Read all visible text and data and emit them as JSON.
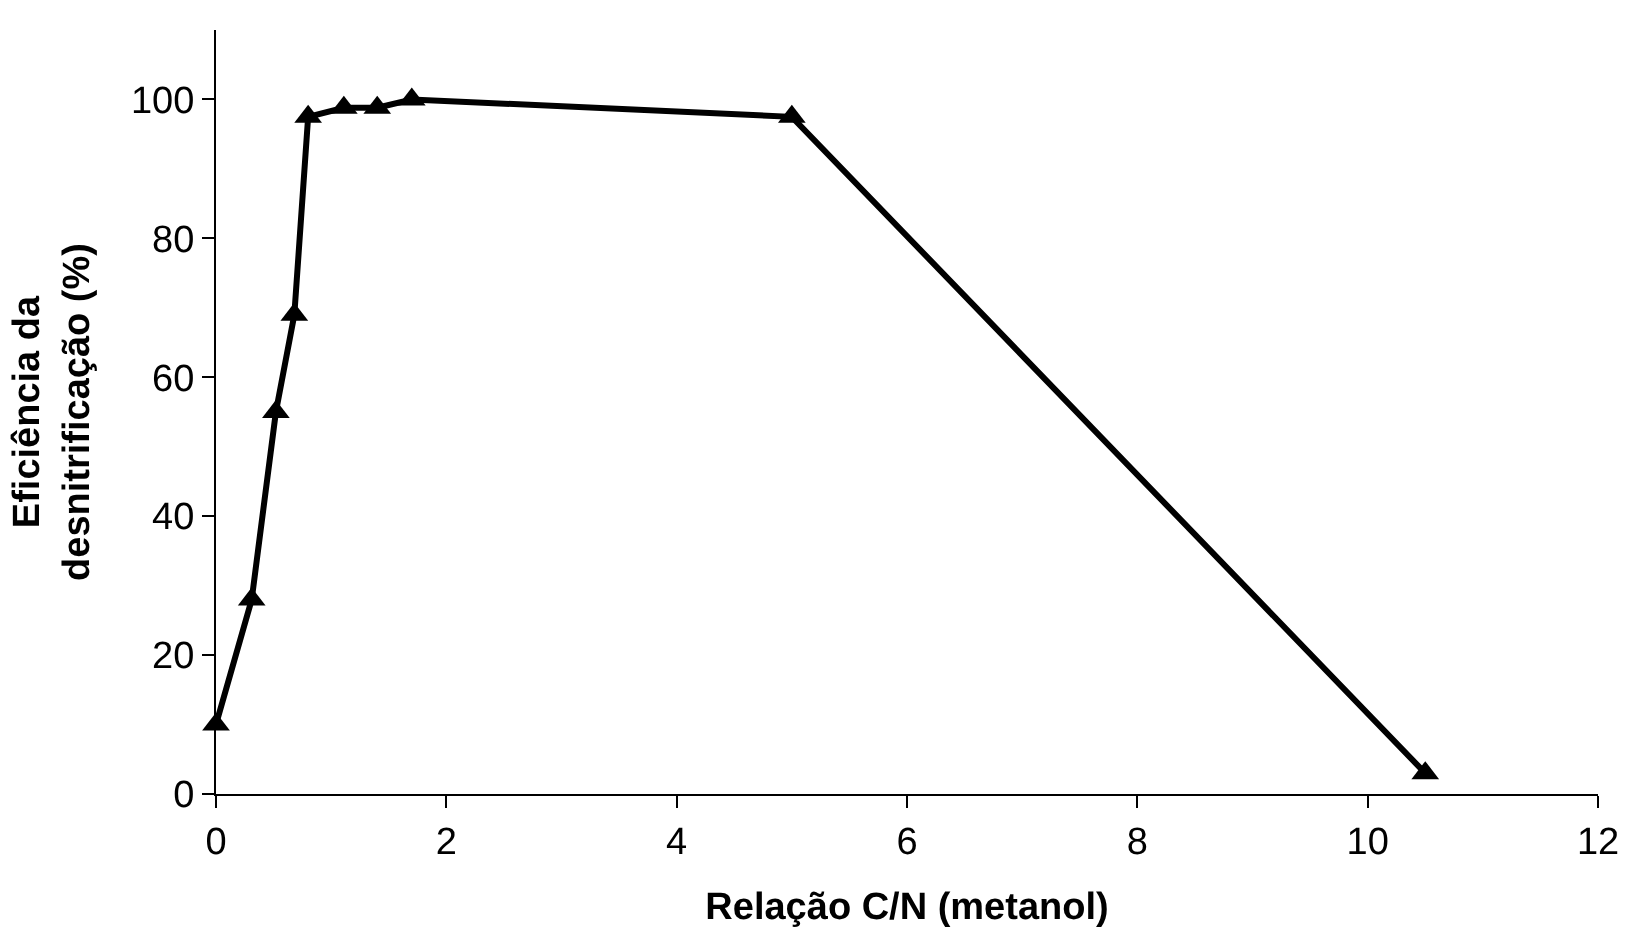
{
  "chart_data": {
    "type": "line",
    "xlabel": "Relação C/N (metanol)",
    "ylabel": "Eficiência da\ndesnitrificação (%)",
    "x": [
      0,
      0.31,
      0.52,
      0.68,
      0.8,
      1.11,
      1.4,
      1.7,
      5.0,
      10.5
    ],
    "series": [
      {
        "color": "#000000",
        "values": [
          10,
          28,
          55,
          69,
          97.5,
          98.8,
          98.8,
          100,
          97.5,
          3
        ]
      }
    ],
    "xlim": [
      0,
      12
    ],
    "xticks": [
      0,
      2,
      4,
      6,
      8,
      10,
      12
    ],
    "ylim": [
      0,
      110
    ],
    "yticks": [
      0,
      20,
      40,
      60,
      80,
      100
    ],
    "marker": "triangle",
    "line_style": "solid"
  }
}
